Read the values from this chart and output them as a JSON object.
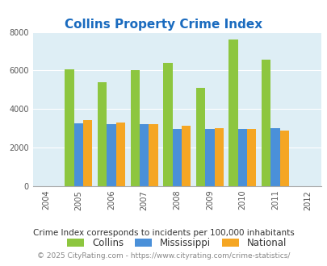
{
  "title": "Collins Property Crime Index",
  "years": [
    2004,
    2005,
    2006,
    2007,
    2008,
    2009,
    2010,
    2011,
    2012
  ],
  "collins": [
    null,
    6050,
    5400,
    6000,
    6400,
    5100,
    7600,
    6550,
    null
  ],
  "mississippi": [
    null,
    3250,
    3200,
    3200,
    2950,
    2950,
    2980,
    3020,
    null
  ],
  "national": [
    null,
    3430,
    3300,
    3220,
    3150,
    3030,
    2980,
    2880,
    null
  ],
  "bar_width": 0.28,
  "colors": {
    "collins": "#8dc63f",
    "mississippi": "#4a90d9",
    "national": "#f5a623"
  },
  "ylim": [
    0,
    8000
  ],
  "yticks": [
    0,
    2000,
    4000,
    6000,
    8000
  ],
  "background_color": "#deeef5",
  "title_color": "#1a6bbf",
  "legend_labels": [
    "Collins",
    "Mississippi",
    "National"
  ],
  "footnote1": "Crime Index corresponds to incidents per 100,000 inhabitants",
  "footnote2": "© 2025 CityRating.com - https://www.cityrating.com/crime-statistics/"
}
